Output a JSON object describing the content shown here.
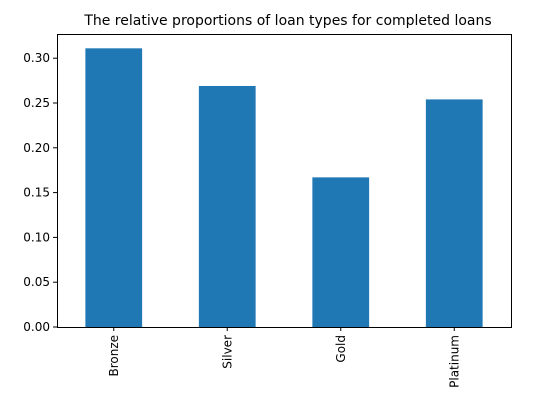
{
  "chart_data": {
    "type": "bar",
    "title": "The relative proportions of loan types for completed loans",
    "xlabel": "",
    "ylabel": "",
    "categories": [
      "Bronze",
      "Silver",
      "Gold",
      "Platinum"
    ],
    "values": [
      0.311,
      0.269,
      0.167,
      0.254
    ],
    "ylim": [
      0,
      0.327
    ],
    "yticks": [
      0.0,
      0.05,
      0.1,
      0.15,
      0.2,
      0.25,
      0.3
    ],
    "ytick_labels": [
      "0.00",
      "0.05",
      "0.10",
      "0.15",
      "0.20",
      "0.25",
      "0.30"
    ],
    "grid": false,
    "legend": "none",
    "bar_color": "#1f77b4",
    "category_label_rotation": "vertical"
  }
}
